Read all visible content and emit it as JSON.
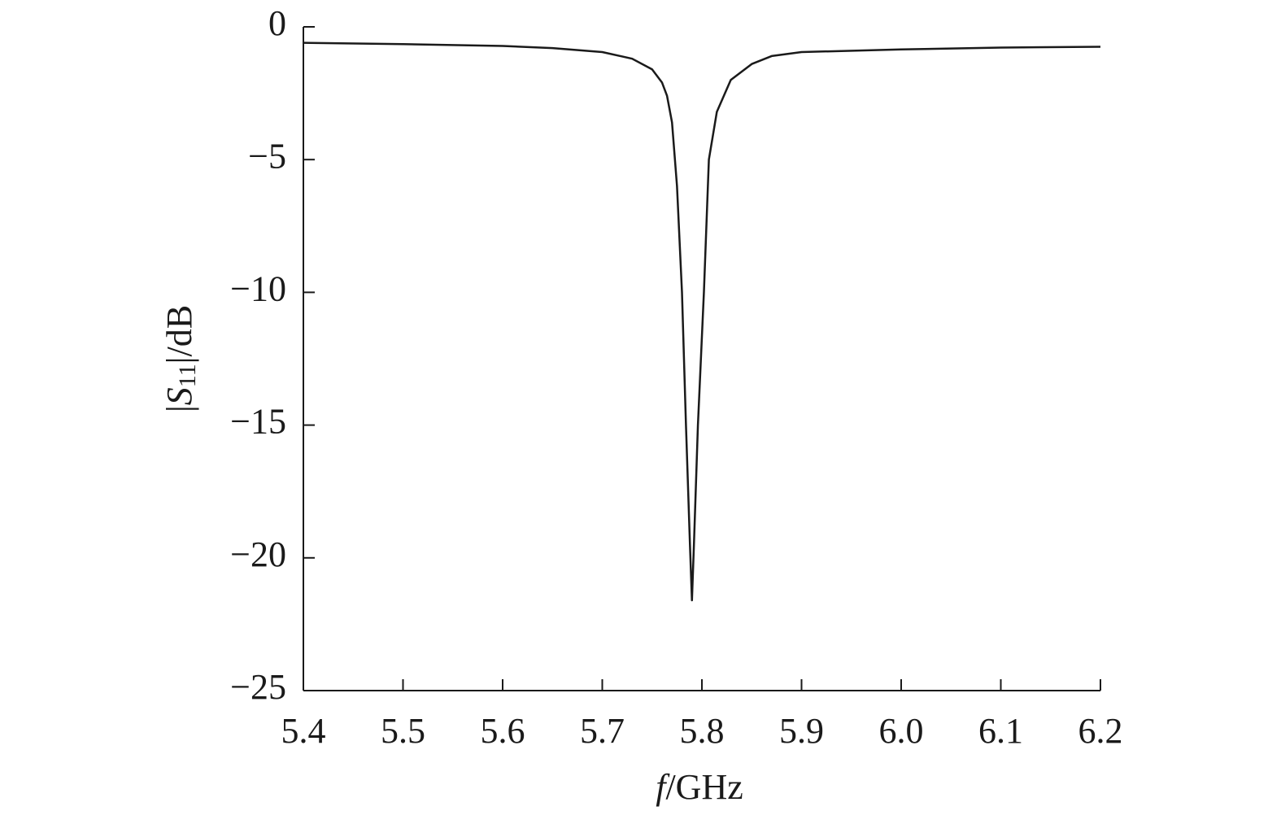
{
  "chart_data": {
    "type": "line",
    "ylabel": [
      "|",
      "S",
      "11",
      "|/dB"
    ],
    "xlabel": [
      "f",
      "/GHz"
    ],
    "x": [
      5.4,
      5.5,
      5.6,
      5.65,
      5.7,
      5.73,
      5.75,
      5.76,
      5.765,
      5.77,
      5.775,
      5.78,
      5.784,
      5.788,
      5.79,
      5.792,
      5.796,
      5.802,
      5.807,
      5.815,
      5.829,
      5.85,
      5.87,
      5.9,
      6.0,
      6.1,
      6.2
    ],
    "values": [
      -0.6,
      -0.65,
      -0.72,
      -0.8,
      -0.95,
      -1.2,
      -1.6,
      -2.1,
      -2.6,
      -3.6,
      -6,
      -10,
      -15,
      -19.5,
      -21.6,
      -19.5,
      -15,
      -10,
      -5,
      -3.2,
      -2,
      -1.4,
      -1.1,
      -0.95,
      -0.85,
      -0.78,
      -0.75
    ],
    "color": "#1a1a1a",
    "xlim": [
      5.4,
      6.2
    ],
    "xticks": [
      5.4,
      5.5,
      5.6,
      5.7,
      5.8,
      5.9,
      {
        "value": 6,
        "label": "6.0"
      },
      6.1,
      6.2
    ],
    "ylim": [
      -25,
      0
    ],
    "yticks": [
      0,
      {
        "value": -5,
        "label": "−5"
      },
      {
        "value": -10,
        "label": "−10"
      },
      {
        "value": -15,
        "label": "−15"
      },
      {
        "value": -20,
        "label": "−20"
      },
      {
        "value": -25,
        "label": "−25"
      }
    ]
  }
}
